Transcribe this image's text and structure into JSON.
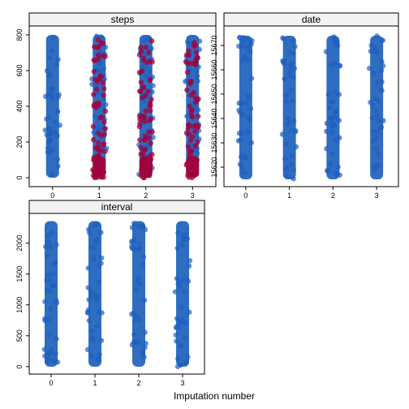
{
  "xlabel": "Imputation number",
  "colors": {
    "observed": "#1f5fbf",
    "observed_fill": "#0b54b5",
    "imputed": "#a5003a",
    "strip_bg": "#f2f2f2",
    "panel_border": "#000000"
  },
  "chart_data": [
    {
      "type": "scatter",
      "title": "steps",
      "x": [
        0,
        1,
        2,
        3
      ],
      "x_tick_labels": [
        "0",
        "1",
        "2",
        "3"
      ],
      "xlim": [
        -0.5,
        3.5
      ],
      "ylim": [
        -50,
        850
      ],
      "y_ticks": [
        0,
        200,
        400,
        600,
        800
      ],
      "y_tick_labels": [
        "0",
        "200",
        "400",
        "600",
        "800"
      ],
      "series": [
        {
          "role": "observed",
          "x": [
            0,
            1,
            2,
            3
          ],
          "range": [
            0,
            800
          ]
        },
        {
          "role": "imputed",
          "x": [
            1,
            2,
            3
          ],
          "range": [
            0,
            780
          ]
        }
      ]
    },
    {
      "type": "scatter",
      "title": "date",
      "x": [
        0,
        1,
        2,
        3
      ],
      "x_tick_labels": [
        "0",
        "1",
        "2",
        "3"
      ],
      "xlim": [
        -0.5,
        3.5
      ],
      "ylim": [
        15612,
        15678
      ],
      "y_ticks": [
        15620,
        15630,
        15640,
        15650,
        15660,
        15670
      ],
      "y_tick_labels": [
        "15620",
        "15630",
        "15640",
        "15650",
        "15660",
        "15670"
      ],
      "series": [
        {
          "role": "observed",
          "x": [
            0,
            1,
            2,
            3
          ],
          "range": [
            15615,
            15674
          ]
        }
      ]
    },
    {
      "type": "scatter",
      "title": "interval",
      "x": [
        0,
        1,
        2,
        3
      ],
      "x_tick_labels": [
        "0",
        "1",
        "2",
        "3"
      ],
      "xlim": [
        -0.5,
        3.5
      ],
      "ylim": [
        -120,
        2480
      ],
      "y_ticks": [
        0,
        500,
        1000,
        1500,
        2000
      ],
      "y_tick_labels": [
        "0",
        "500",
        "1000",
        "1500",
        "2000"
      ],
      "series": [
        {
          "role": "observed",
          "x": [
            0,
            1,
            2,
            3
          ],
          "range": [
            0,
            2355
          ]
        }
      ]
    }
  ]
}
